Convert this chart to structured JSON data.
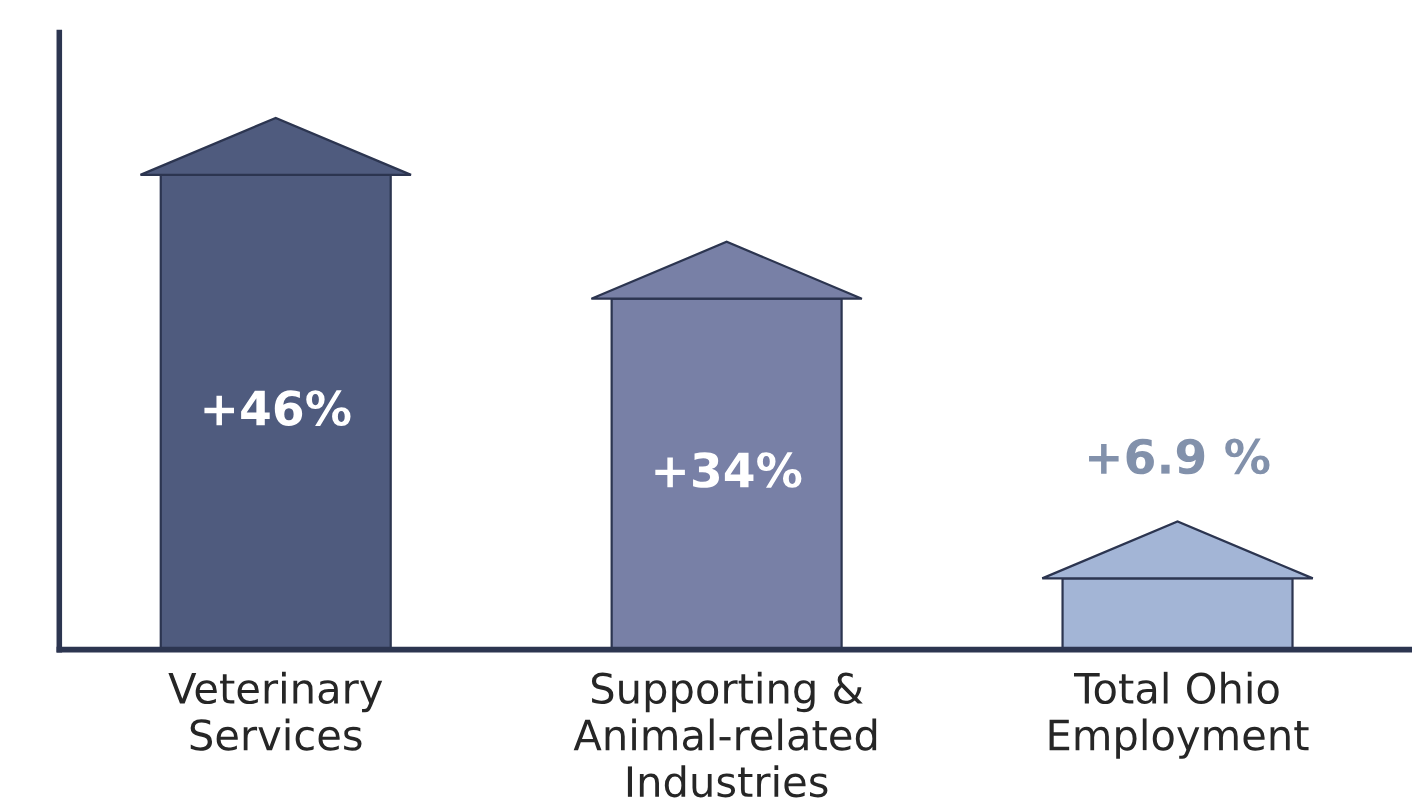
{
  "chart_data": {
    "type": "bar",
    "categories": [
      "Veterinary\nServices",
      "Supporting &\nAnimal-related\nIndustries",
      "Total Ohio\nEmployment"
    ],
    "values": [
      46,
      34,
      6.9
    ],
    "colors": [
      "#4f5b7e",
      "#7880a6",
      "#a3b5d6"
    ],
    "value_labels": [
      "+46%",
      "+34%",
      "+6.9 %"
    ],
    "grid": false,
    "legend": false
  }
}
